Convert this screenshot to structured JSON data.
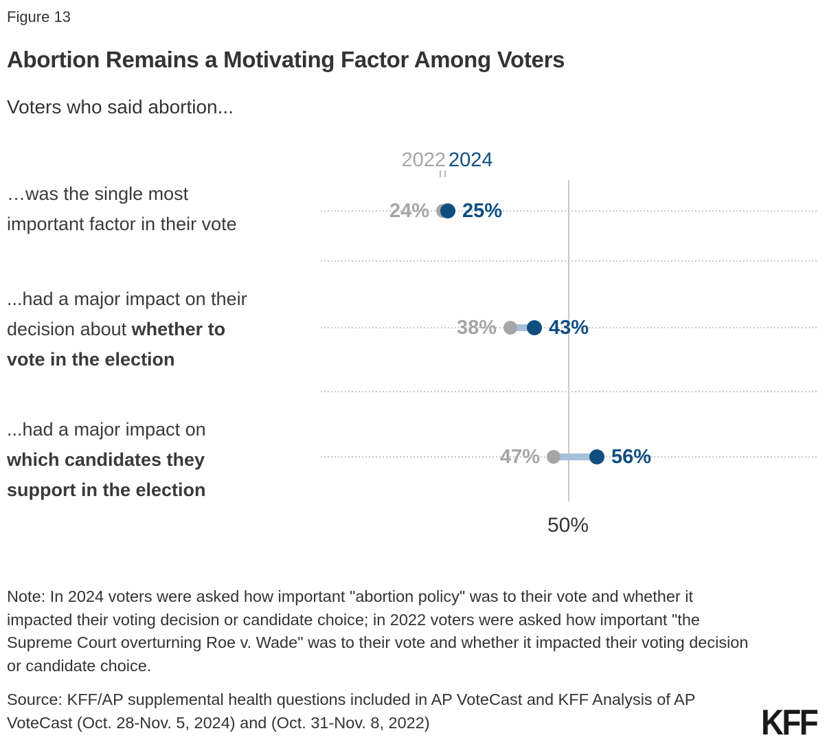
{
  "figure_label": "Figure 13",
  "title": "Abortion Remains a Motivating Factor Among Voters",
  "subtitle": "Voters who said abortion...",
  "legend": {
    "year_2022": "2022",
    "year_2024": "2024"
  },
  "colors": {
    "gray": "#a6a6a6",
    "blue": "#114e80",
    "light_blue_connector": "#a6c2db",
    "gridline": "#c8c8c8",
    "text": "#333333"
  },
  "chart_data": {
    "type": "dumbbell",
    "categories": [
      "…was the single most important factor in their vote",
      "...had a major impact on their decision about whether to vote in the election",
      "...had a major impact on which candidates they support in the election"
    ],
    "series": [
      {
        "name": "2022",
        "values": [
          24,
          38,
          47
        ],
        "labels": [
          "24%",
          "38%",
          "47%"
        ],
        "color": "#a6a6a6"
      },
      {
        "name": "2024",
        "values": [
          25,
          43,
          56
        ],
        "labels": [
          "25%",
          "43%",
          "56%"
        ],
        "color": "#114e80"
      }
    ],
    "title": "Abortion Remains a Motivating Factor Among Voters",
    "subtitle": "Voters who said abortion...",
    "xlabel": "",
    "ylabel": "",
    "axis_reference": {
      "label": "50%",
      "value": 50
    },
    "grid": "dotted horizontal per category",
    "legend_position": "top center above first row"
  },
  "row_labels": [
    {
      "lines": [
        [
          {
            "text": "…was the single most",
            "bold": false
          }
        ],
        [
          {
            "text": "important factor in their vote",
            "bold": false
          }
        ]
      ]
    },
    {
      "lines": [
        [
          {
            "text": "...had a major impact on their",
            "bold": false
          }
        ],
        [
          {
            "text": "decision about ",
            "bold": false
          },
          {
            "text": "whether to",
            "bold": true
          }
        ],
        [
          {
            "text": "vote in the election",
            "bold": true
          }
        ]
      ]
    },
    {
      "lines": [
        [
          {
            "text": "...had a major impact on",
            "bold": false
          }
        ],
        [
          {
            "text": "which candidates they",
            "bold": true
          }
        ],
        [
          {
            "text": "support in the election",
            "bold": true
          }
        ]
      ]
    }
  ],
  "axis": {
    "tick_label": "50%"
  },
  "note": "Note: In 2024 voters were asked how important \"abortion policy\" was to their vote and whether it impacted their voting decision or candidate choice; in 2022 voters were asked how important \"the Supreme Court overturning Roe v. Wade\" was to their vote and whether it impacted their voting decision or candidate choice.",
  "source": "Source: KFF/AP supplemental health questions included in AP VoteCast and KFF Analysis of AP VoteCast (Oct. 28-Nov. 5, 2024) and (Oct. 31-Nov. 8, 2022)",
  "logo": "KFF"
}
